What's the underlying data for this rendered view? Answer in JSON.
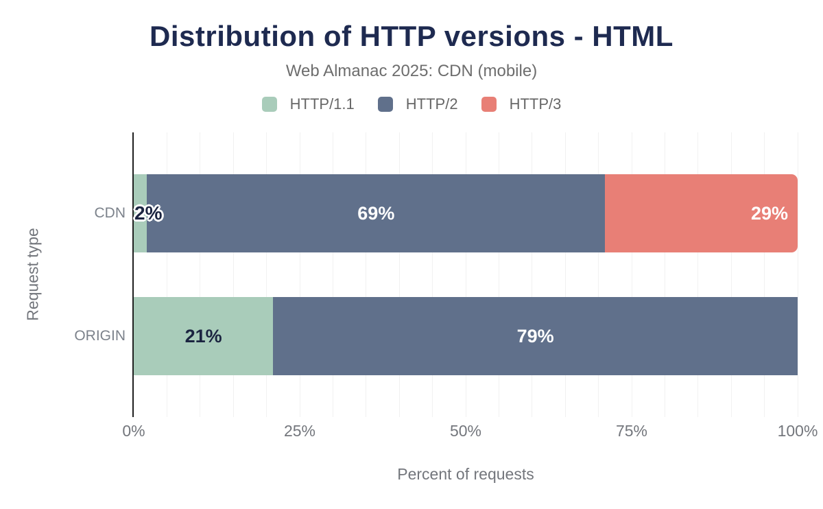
{
  "chart_data": {
    "type": "bar",
    "orientation": "horizontal",
    "stacked": true,
    "title": "Distribution of HTTP versions - HTML",
    "subtitle": "Web Almanac 2025: CDN (mobile)",
    "categories": [
      "CDN",
      "ORIGIN"
    ],
    "series": [
      {
        "name": "HTTP/1.1",
        "color": "#a9ccba",
        "label_color": "#1b2440",
        "values": [
          2,
          21
        ],
        "labels": [
          "2%",
          "21%"
        ],
        "label_align": "center"
      },
      {
        "name": "HTTP/2",
        "color": "#60708b",
        "label_color": "#ffffff",
        "values": [
          69,
          79
        ],
        "labels": [
          "69%",
          "79%"
        ],
        "label_align": "center"
      },
      {
        "name": "HTTP/3",
        "color": "#e87f76",
        "label_color": "#ffffff",
        "values": [
          29,
          0
        ],
        "labels": [
          "29%",
          ""
        ],
        "label_align": "right",
        "rounded_end": true
      }
    ],
    "xlabel": "Percent of requests",
    "ylabel": "Request type",
    "xlim": [
      0,
      100
    ],
    "xticks": [
      {
        "value": 0,
        "label": "0%"
      },
      {
        "value": 25,
        "label": "25%"
      },
      {
        "value": 50,
        "label": "50%"
      },
      {
        "value": 75,
        "label": "75%"
      },
      {
        "value": 100,
        "label": "100%"
      }
    ],
    "grid": {
      "minor_step": 5,
      "on": true
    },
    "legend_position": "top"
  },
  "colors": {
    "title": "#1e2a50",
    "subtitle": "#6d6d6d",
    "legend_text": "#666666",
    "tick_text": "#73767c",
    "category_text": "#7c828b",
    "axis_line": "#1f1f1f",
    "gridline": "#f1f1f1"
  }
}
